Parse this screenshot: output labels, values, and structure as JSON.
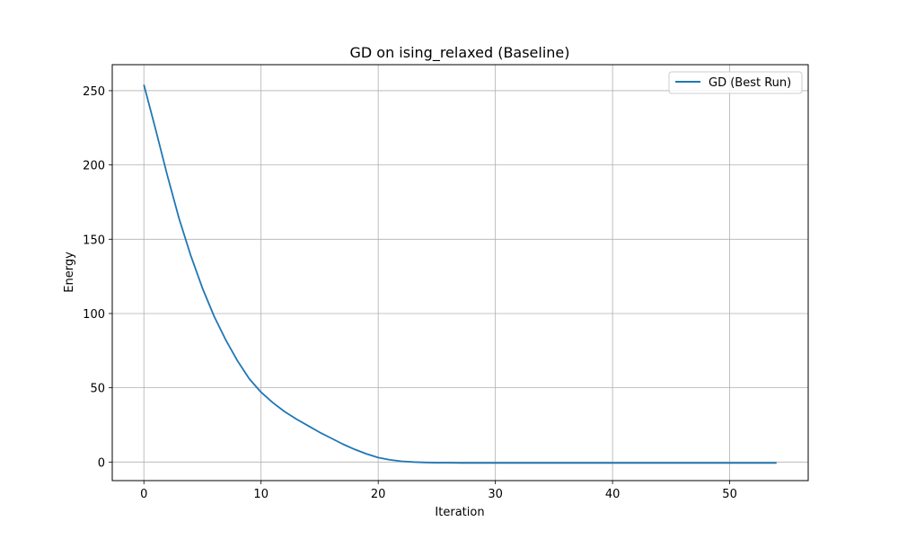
{
  "chart_data": {
    "type": "line",
    "title": "GD on ising_relaxed (Baseline)",
    "xlabel": "Iteration",
    "ylabel": "Energy",
    "xlim": [
      -2.7,
      56.7
    ],
    "ylim": [
      -12.5,
      267.5
    ],
    "xticks": [
      0,
      10,
      20,
      30,
      40,
      50
    ],
    "yticks": [
      0,
      50,
      100,
      150,
      200,
      250
    ],
    "grid": true,
    "legend_position": "upper-right",
    "colors": {
      "series": "#1f77b4",
      "grid": "#b0b0b0"
    },
    "series": [
      {
        "name": "GD (Best Run)",
        "x": [
          0,
          1,
          2,
          3,
          4,
          5,
          6,
          7,
          8,
          9,
          10,
          11,
          12,
          13,
          14,
          15,
          16,
          17,
          18,
          19,
          20,
          21,
          22,
          23,
          24,
          25,
          26,
          27,
          28,
          29,
          30,
          31,
          32,
          33,
          34,
          35,
          36,
          37,
          38,
          39,
          40,
          41,
          42,
          43,
          44,
          45,
          46,
          47,
          48,
          49,
          50,
          51,
          52,
          53,
          54
        ],
        "values": [
          254,
          224,
          193,
          164,
          139,
          117,
          98,
          82,
          68,
          56,
          47,
          40,
          34,
          29,
          24.5,
          20,
          16,
          12,
          8.5,
          5.5,
          3,
          1.5,
          0.5,
          0,
          -0.3,
          -0.5,
          -0.5,
          -0.6,
          -0.6,
          -0.6,
          -0.6,
          -0.6,
          -0.6,
          -0.6,
          -0.6,
          -0.6,
          -0.6,
          -0.6,
          -0.6,
          -0.6,
          -0.6,
          -0.6,
          -0.6,
          -0.6,
          -0.6,
          -0.6,
          -0.6,
          -0.6,
          -0.6,
          -0.6,
          -0.6,
          -0.6,
          -0.6,
          -0.6,
          -0.6
        ]
      }
    ]
  }
}
